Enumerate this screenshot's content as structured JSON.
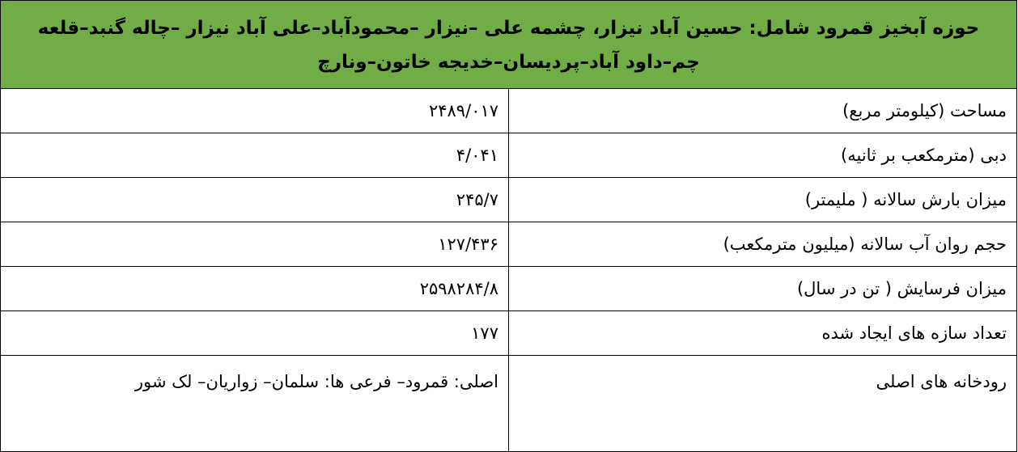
{
  "header": {
    "title": "حوزه آبخیز قمرود شامل: حسین آباد نیزار، چشمه علی –نیزار –محمودآباد–علی آباد نیزار –چاله گنبد–قلعه چم–داود آباد–پردیسان–خدیجه خاتون–ونارچ",
    "background_color": "#70AD47"
  },
  "rows": [
    {
      "label": "مساحت (کیلومتر مربع)",
      "value": "۲۴۸۹/۰۱۷"
    },
    {
      "label": "دبی (مترمکعب بر ثانیه)",
      "value": "۴/۰۴۱"
    },
    {
      "label": "میزان بارش سالانه ( ملیمتر)",
      "value": "۲۴۵/۷"
    },
    {
      "label": "حجم روان آب سالانه (میلیون مترمکعب)",
      "value": "۱۲۷/۴۳۶"
    },
    {
      "label": "میزان فرسایش ( تن در سال)",
      "value": "۲۵۹۸۲۸۴/۸"
    },
    {
      "label": "تعداد سازه های ایجاد شده",
      "value": "۱۷۷"
    },
    {
      "label": "رودخانه های اصلی",
      "value": "اصلی: قمرود– فرعی ها: سلمان– زواریان– لک شور"
    }
  ]
}
